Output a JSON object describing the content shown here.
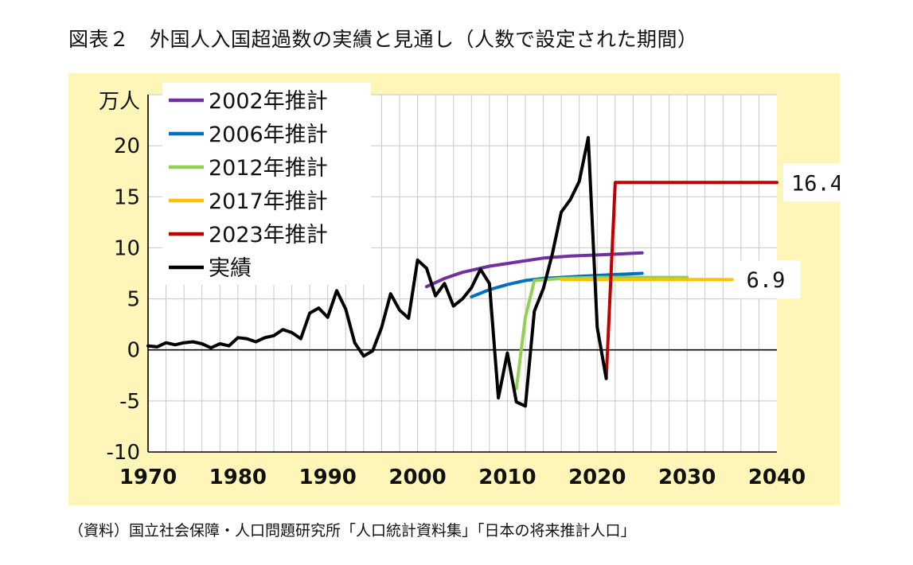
{
  "title": "図表２　外国人入国超過数の実績と見通し（人数で設定された期間）",
  "source": "（資料）国立社会保障・人口問題研究所「人口統計資料集」「日本の将来推計人口」",
  "chart_data": {
    "type": "line",
    "title": "図表２　外国人入国超過数の実績と見通し（人数で設定された期間）",
    "ylabel": "万人",
    "xlim": [
      1970,
      2040
    ],
    "ylim": [
      -10,
      25
    ],
    "x_ticks": [
      "1970",
      "1980",
      "1990",
      "2000",
      "2010",
      "2020",
      "2030",
      "2040"
    ],
    "y_ticks": [
      "-10",
      "-5",
      "0",
      "5",
      "10",
      "15",
      "20"
    ],
    "legend_position": "top-left",
    "grid": true,
    "series": [
      {
        "name": "2002年推計",
        "color": "#7030a0",
        "points": [
          [
            2001,
            6.2
          ],
          [
            2003,
            7.0
          ],
          [
            2005,
            7.6
          ],
          [
            2008,
            8.2
          ],
          [
            2011,
            8.6
          ],
          [
            2014,
            9.0
          ],
          [
            2017,
            9.2
          ],
          [
            2020,
            9.3
          ],
          [
            2025,
            9.5
          ]
        ]
      },
      {
        "name": "2006年推計",
        "color": "#0070c0",
        "points": [
          [
            2006,
            5.2
          ],
          [
            2008,
            5.9
          ],
          [
            2010,
            6.4
          ],
          [
            2012,
            6.8
          ],
          [
            2014,
            7.0
          ],
          [
            2016,
            7.1
          ],
          [
            2018,
            7.2
          ],
          [
            2020,
            7.3
          ],
          [
            2025,
            7.5
          ]
        ]
      },
      {
        "name": "2012年推計",
        "color": "#92d050",
        "points": [
          [
            2011,
            -3.8
          ],
          [
            2012,
            3.2
          ],
          [
            2013,
            6.8
          ],
          [
            2016,
            7.0
          ],
          [
            2020,
            7.1
          ],
          [
            2030,
            7.1
          ]
        ]
      },
      {
        "name": "2017年推計",
        "color": "#ffc000",
        "points": [
          [
            2016,
            6.9
          ],
          [
            2020,
            6.9
          ],
          [
            2025,
            6.9
          ],
          [
            2030,
            6.9
          ],
          [
            2035,
            6.9
          ]
        ]
      },
      {
        "name": "2023年推計",
        "color": "#c00000",
        "points": [
          [
            2021,
            -2.8
          ],
          [
            2022,
            16.4
          ],
          [
            2040,
            16.4
          ]
        ]
      },
      {
        "name": "実績",
        "color": "#000000",
        "points": [
          [
            1970,
            0.4
          ],
          [
            1971,
            0.3
          ],
          [
            1972,
            0.7
          ],
          [
            1973,
            0.5
          ],
          [
            1974,
            0.7
          ],
          [
            1975,
            0.8
          ],
          [
            1976,
            0.6
          ],
          [
            1977,
            0.2
          ],
          [
            1978,
            0.6
          ],
          [
            1979,
            0.4
          ],
          [
            1980,
            1.2
          ],
          [
            1981,
            1.1
          ],
          [
            1982,
            0.8
          ],
          [
            1983,
            1.2
          ],
          [
            1984,
            1.4
          ],
          [
            1985,
            2.0
          ],
          [
            1986,
            1.7
          ],
          [
            1987,
            1.1
          ],
          [
            1988,
            3.6
          ],
          [
            1989,
            4.1
          ],
          [
            1990,
            3.2
          ],
          [
            1991,
            5.8
          ],
          [
            1992,
            4.0
          ],
          [
            1993,
            0.7
          ],
          [
            1994,
            -0.6
          ],
          [
            1995,
            -0.1
          ],
          [
            1996,
            2.2
          ],
          [
            1997,
            5.5
          ],
          [
            1998,
            3.9
          ],
          [
            1999,
            3.1
          ],
          [
            2000,
            8.8
          ],
          [
            2001,
            8.0
          ],
          [
            2002,
            5.3
          ],
          [
            2003,
            6.5
          ],
          [
            2004,
            4.3
          ],
          [
            2005,
            5.0
          ],
          [
            2006,
            6.1
          ],
          [
            2007,
            7.9
          ],
          [
            2008,
            6.5
          ],
          [
            2009,
            -4.7
          ],
          [
            2010,
            -0.3
          ],
          [
            2011,
            -5.1
          ],
          [
            2012,
            -5.5
          ],
          [
            2013,
            3.8
          ],
          [
            2014,
            6.0
          ],
          [
            2015,
            9.4
          ],
          [
            2016,
            13.5
          ],
          [
            2017,
            14.7
          ],
          [
            2018,
            16.5
          ],
          [
            2019,
            20.8
          ],
          [
            2020,
            2.2
          ],
          [
            2021,
            -2.8
          ]
        ]
      }
    ],
    "annotations": [
      {
        "text": "16.4",
        "series": "2023年推計",
        "x": 2040,
        "y": 16.4
      },
      {
        "text": "6.9",
        "series": "2017年推計",
        "x": 2035,
        "y": 6.9
      }
    ]
  }
}
